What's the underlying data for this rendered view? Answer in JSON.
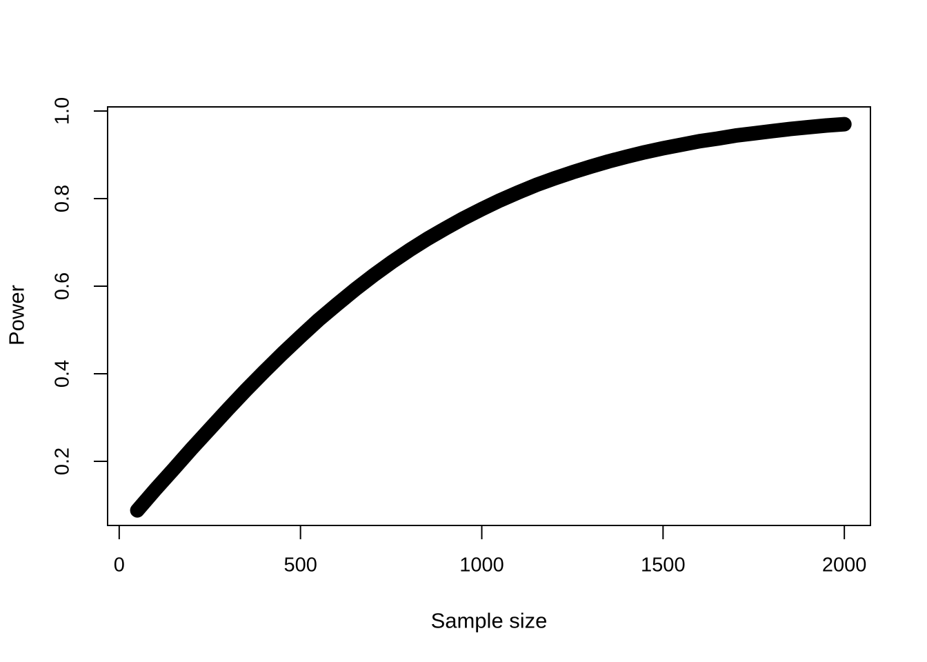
{
  "chart_data": {
    "type": "line",
    "title": "",
    "xlabel": "Sample size",
    "ylabel": "Power",
    "x": [
      50,
      100,
      150,
      200,
      250,
      300,
      350,
      400,
      450,
      500,
      550,
      600,
      650,
      700,
      750,
      800,
      850,
      900,
      950,
      1000,
      1050,
      1100,
      1150,
      1200,
      1250,
      1300,
      1350,
      1400,
      1450,
      1500,
      1550,
      1600,
      1650,
      1700,
      1750,
      1800,
      1850,
      1900,
      1950,
      2000
    ],
    "series": [
      {
        "name": "Power",
        "values": [
          0.088,
          0.136,
          0.182,
          0.229,
          0.274,
          0.319,
          0.363,
          0.405,
          0.446,
          0.485,
          0.523,
          0.558,
          0.592,
          0.624,
          0.654,
          0.682,
          0.708,
          0.732,
          0.755,
          0.776,
          0.796,
          0.814,
          0.831,
          0.846,
          0.86,
          0.873,
          0.885,
          0.896,
          0.906,
          0.915,
          0.923,
          0.931,
          0.937,
          0.944,
          0.949,
          0.954,
          0.959,
          0.963,
          0.967,
          0.97
        ]
      }
    ],
    "xticks": {
      "values": [
        0,
        500,
        1000,
        1500,
        2000
      ],
      "labels": [
        "0",
        "500",
        "1000",
        "1500",
        "2000"
      ]
    },
    "yticks": {
      "values": [
        0.2,
        0.4,
        0.6,
        0.8,
        1.0
      ],
      "labels": [
        "0.2",
        "0.4",
        "0.6",
        "0.8",
        "1.0"
      ]
    },
    "xlim": [
      -32,
      2072
    ],
    "ylim": [
      0.0535,
      1.0095
    ],
    "grid": false,
    "legend": "none",
    "line_color": "#000000",
    "axis_color": "#000000",
    "background": "#FFFFFF"
  }
}
